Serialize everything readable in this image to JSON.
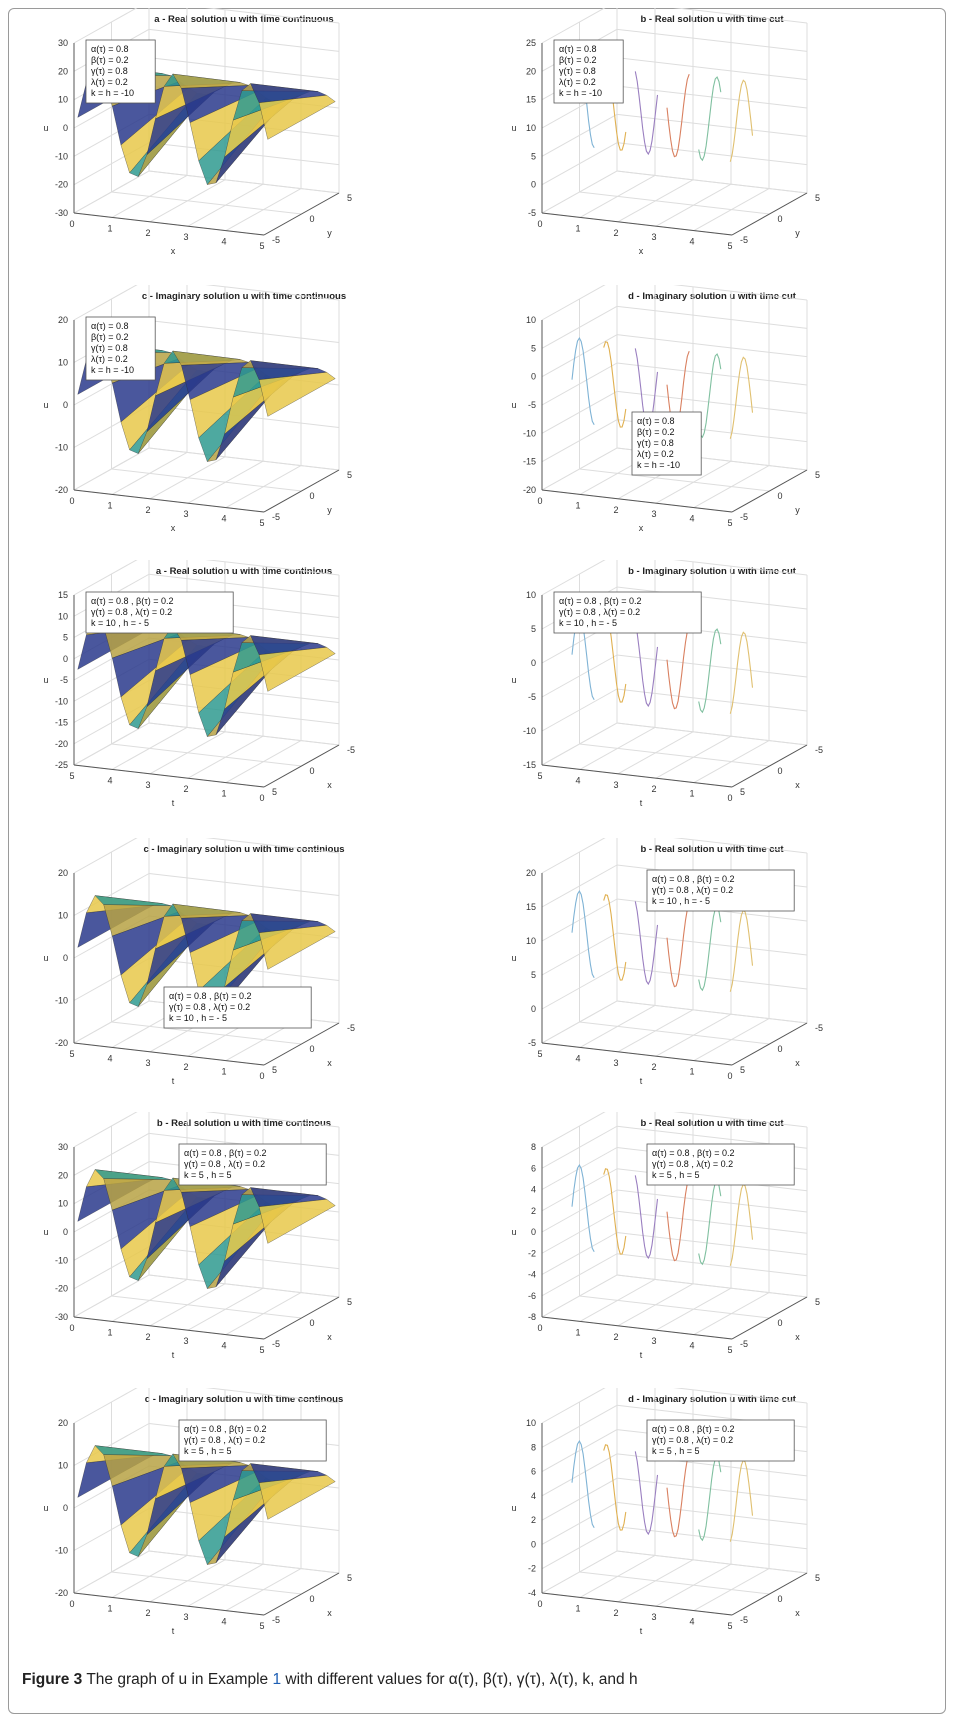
{
  "caption": {
    "label": "Figure 3",
    "text_before": "The graph of u in Example",
    "example_ref": "1",
    "text_after": "with different values for α(τ), β(τ), γ(τ), λ(τ), k, and h"
  },
  "colors": {
    "surface_a": "#2f9a8f",
    "surface_b": "#e8c84a",
    "surface_c": "#2a3a8c",
    "surface_d": "#b7a244",
    "grid": "#dddddd",
    "axis": "#555555"
  },
  "chart_data": [
    {
      "type": "surface",
      "title": "a - Real solution u with time continuous",
      "xlabel": "x",
      "ylabel": "y",
      "zlabel": "u",
      "xticks": [
        "0",
        "1",
        "2",
        "3",
        "4",
        "5"
      ],
      "yticks": [
        "-5",
        "0",
        "5"
      ],
      "zticks": [
        "30",
        "20",
        "10",
        "0",
        "-10",
        "-20",
        "-30"
      ],
      "zlim": [
        -30,
        30
      ],
      "legend": [
        "α(τ) = 0.8",
        "β(τ) = 0.2",
        "γ(τ) = 0.8",
        "λ(τ) = 0.2",
        "k = h = -10"
      ],
      "legend_position": "top-left"
    },
    {
      "type": "line",
      "title": "b - Real solution u with time cut",
      "xlabel": "x",
      "ylabel": "y",
      "zlabel": "u",
      "xticks": [
        "0",
        "1",
        "2",
        "3",
        "4",
        "5"
      ],
      "yticks": [
        "-5",
        "0",
        "5"
      ],
      "zticks": [
        "25",
        "20",
        "15",
        "10",
        "5",
        "0",
        "-5"
      ],
      "zlim": [
        -5,
        25
      ],
      "legend": [
        "α(τ) = 0.8",
        "β(τ) = 0.2",
        "γ(τ) = 0.8",
        "λ(τ) = 0.2",
        "k = h = -10"
      ],
      "legend_position": "top-left"
    },
    {
      "type": "surface",
      "title": "c - Imaginary solution u with time continuous",
      "xlabel": "x",
      "ylabel": "y",
      "zlabel": "u",
      "xticks": [
        "0",
        "1",
        "2",
        "3",
        "4",
        "5"
      ],
      "yticks": [
        "-5",
        "0",
        "5"
      ],
      "zticks": [
        "20",
        "10",
        "0",
        "-10",
        "-20"
      ],
      "zlim": [
        -20,
        20
      ],
      "legend": [
        "α(τ) = 0.8",
        "β(τ) = 0.2",
        "γ(τ) = 0.8",
        "λ(τ) = 0.2",
        "k = h = -10"
      ],
      "legend_position": "top-left"
    },
    {
      "type": "line",
      "title": "d - Imaginary solution u with time cut",
      "xlabel": "x",
      "ylabel": "y",
      "zlabel": "u",
      "xticks": [
        "0",
        "1",
        "2",
        "3",
        "4",
        "5"
      ],
      "yticks": [
        "-5",
        "0",
        "5"
      ],
      "zticks": [
        "10",
        "5",
        "0",
        "-5",
        "-10",
        "-15",
        "-20"
      ],
      "zlim": [
        -20,
        10
      ],
      "legend": [
        "α(τ) = 0.8",
        "β(τ) = 0.2",
        "γ(τ) = 0.8",
        "λ(τ) = 0.2",
        "k = h = -10"
      ],
      "legend_position": "bottom-center"
    },
    {
      "type": "surface",
      "title": "a - Real solution u with time continious",
      "xlabel": "t",
      "ylabel": "x",
      "zlabel": "u",
      "xticks": [
        "5",
        "4",
        "3",
        "2",
        "1",
        "0"
      ],
      "yticks": [
        "5",
        "0",
        "-5"
      ],
      "zticks": [
        "15",
        "10",
        "5",
        "0",
        "-5",
        "-10",
        "-15",
        "-20",
        "-25"
      ],
      "zlim": [
        -25,
        15
      ],
      "legend": [
        "α(τ) = 0.8   ,  β(τ) = 0.2",
        "γ(τ) = 0.8   ,  λ(τ) = 0.2",
        "k = 10        ,  h = - 5"
      ],
      "legend_position": "top-left"
    },
    {
      "type": "line",
      "title": "b - Imaginary solution u with time cut",
      "xlabel": "t",
      "ylabel": "x",
      "zlabel": "u",
      "xticks": [
        "5",
        "4",
        "3",
        "2",
        "1",
        "0"
      ],
      "yticks": [
        "5",
        "0",
        "-5"
      ],
      "zticks": [
        "10",
        "5",
        "0",
        "-5",
        "-10",
        "-15"
      ],
      "zlim": [
        -15,
        10
      ],
      "legend": [
        "α(τ) = 0.8   ,  β(τ) = 0.2",
        "γ(τ) = 0.8   ,  λ(τ) = 0.2",
        "k = 10        ,  h = - 5"
      ],
      "legend_position": "top-left"
    },
    {
      "type": "surface",
      "title": "c - Imaginary solution u with time continious",
      "xlabel": "t",
      "ylabel": "x",
      "zlabel": "u",
      "xticks": [
        "5",
        "4",
        "3",
        "2",
        "1",
        "0"
      ],
      "yticks": [
        "5",
        "0",
        "-5"
      ],
      "zticks": [
        "20",
        "10",
        "0",
        "-10",
        "-20"
      ],
      "zlim": [
        -20,
        20
      ],
      "legend": [
        "α(τ) = 0.8   ,  β(τ) = 0.2",
        "γ(τ) = 0.8   ,  λ(τ) = 0.2",
        "k = 10        ,  h = - 5"
      ],
      "legend_position": "bottom-center"
    },
    {
      "type": "line",
      "title": "b - Real solution u with time cut",
      "xlabel": "t",
      "ylabel": "x",
      "zlabel": "u",
      "xticks": [
        "5",
        "4",
        "3",
        "2",
        "1",
        "0"
      ],
      "yticks": [
        "5",
        "0",
        "-5"
      ],
      "zticks": [
        "20",
        "15",
        "10",
        "5",
        "0",
        "-5"
      ],
      "zlim": [
        -5,
        20
      ],
      "legend": [
        "α(τ) = 0.8   ,  β(τ) = 0.2",
        "γ(τ) = 0.8   ,  λ(τ) = 0.2",
        "k = 10        ,  h = - 5"
      ],
      "legend_position": "top-center"
    },
    {
      "type": "surface",
      "title": "b - Real solution u with time continous",
      "xlabel": "t",
      "ylabel": "x",
      "zlabel": "u",
      "xticks": [
        "0",
        "1",
        "2",
        "3",
        "4",
        "5"
      ],
      "yticks": [
        "-5",
        "0",
        "5"
      ],
      "zticks": [
        "30",
        "20",
        "10",
        "0",
        "-10",
        "-20",
        "-30"
      ],
      "zlim": [
        -30,
        30
      ],
      "legend": [
        "α(τ) = 0.8   ,  β(τ) = 0.2",
        "γ(τ) = 0.8   ,  λ(τ) = 0.2",
        "k = 5          ,  h =  5"
      ],
      "legend_position": "top-center"
    },
    {
      "type": "line",
      "title": "b - Real solution u with time cut",
      "xlabel": "t",
      "ylabel": "x",
      "zlabel": "u",
      "xticks": [
        "0",
        "1",
        "2",
        "3",
        "4",
        "5"
      ],
      "yticks": [
        "-5",
        "0",
        "5"
      ],
      "zticks": [
        "8",
        "6",
        "4",
        "2",
        "0",
        "-2",
        "-4",
        "-6",
        "-8"
      ],
      "zlim": [
        -8,
        8
      ],
      "legend": [
        "α(τ) = 0.8   ,  β(τ) = 0.2",
        "γ(τ) = 0.8   ,  λ(τ) = 0.2",
        "k = 5          ,  h =  5"
      ],
      "legend_position": "top-center"
    },
    {
      "type": "surface",
      "title": "c - Imaginary solution u with time continous",
      "xlabel": "t",
      "ylabel": "x",
      "zlabel": "u",
      "xticks": [
        "0",
        "1",
        "2",
        "3",
        "4",
        "5"
      ],
      "yticks": [
        "-5",
        "0",
        "5"
      ],
      "zticks": [
        "20",
        "10",
        "0",
        "-10",
        "-20"
      ],
      "zlim": [
        -20,
        20
      ],
      "legend": [
        "α(τ) = 0.8   ,  β(τ) = 0.2",
        "γ(τ) = 0.8   ,  λ(τ) = 0.2",
        "k = 5          ,  h =  5"
      ],
      "legend_position": "top-center"
    },
    {
      "type": "line",
      "title": "d - Imaginary solution u with time cut",
      "xlabel": "t",
      "ylabel": "x",
      "zlabel": "u",
      "xticks": [
        "0",
        "1",
        "2",
        "3",
        "4",
        "5"
      ],
      "yticks": [
        "-5",
        "0",
        "5"
      ],
      "zticks": [
        "10",
        "8",
        "6",
        "4",
        "2",
        "0",
        "-2",
        "-4"
      ],
      "zlim": [
        -4,
        10
      ],
      "legend": [
        "α(τ) = 0.8   ,  β(τ) = 0.2",
        "γ(τ) = 0.8   ,  λ(τ) = 0.2",
        "k = 5          ,  h =  5"
      ],
      "legend_position": "top-center"
    }
  ]
}
